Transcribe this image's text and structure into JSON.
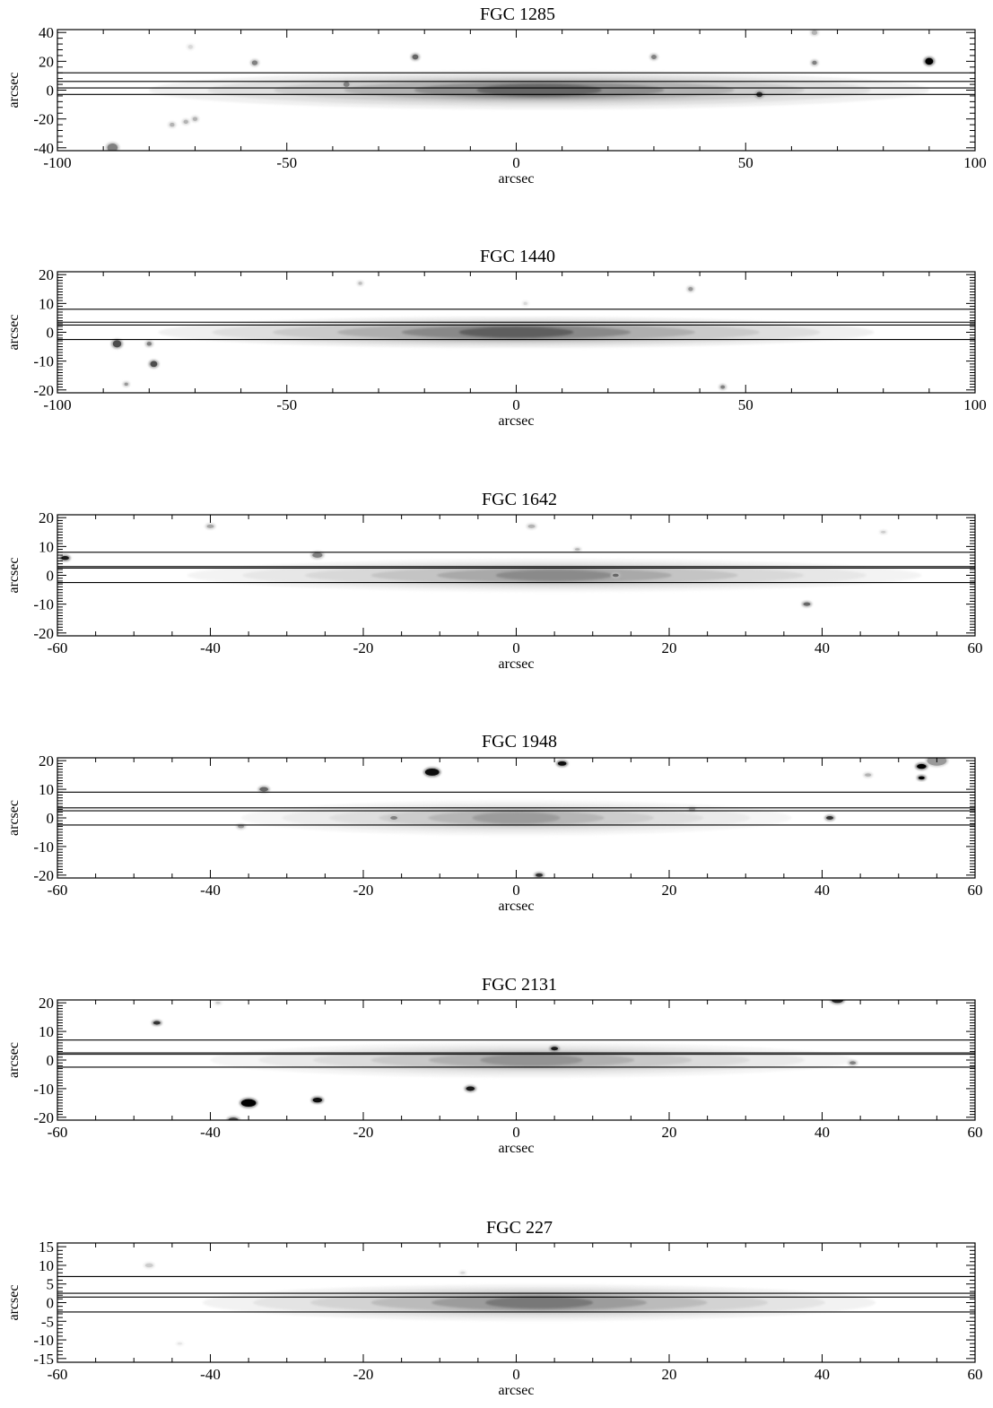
{
  "chart_data": [
    {
      "type": "heatmap",
      "title": "FGC 1285",
      "xlabel": "arcsec",
      "ylabel": "arcsec",
      "xlim": [
        -100,
        100
      ],
      "ylim": [
        -42,
        42
      ],
      "xticks": [
        -100,
        -50,
        0,
        50,
        100
      ],
      "yticks": [
        -40,
        -20,
        0,
        20,
        40
      ],
      "xminor": 10,
      "yminor": 4,
      "slit_lines": [
        12,
        6,
        1.5,
        -3
      ],
      "disk": {
        "center": 5,
        "half_length": 85,
        "scale_height": 5.5,
        "peak": 0.85
      },
      "sources": [
        {
          "x": 90,
          "y": 20,
          "size": 1.7,
          "peak": 1.0
        },
        {
          "x": 53,
          "y": -3,
          "size": 1.3,
          "peak": 0.8
        },
        {
          "x": -22,
          "y": 23,
          "size": 1.3,
          "peak": 0.6
        },
        {
          "x": -57,
          "y": 19,
          "size": 1.2,
          "peak": 0.5
        },
        {
          "x": 30,
          "y": 23,
          "size": 1.1,
          "peak": 0.5
        },
        {
          "x": 65,
          "y": 19,
          "size": 1.0,
          "peak": 0.5
        },
        {
          "x": -37,
          "y": 4,
          "size": 1.3,
          "peak": 0.5
        },
        {
          "x": -88,
          "y": -40,
          "size": 2.2,
          "peak": 0.5
        },
        {
          "x": -70,
          "y": -20,
          "size": 1.0,
          "peak": 0.3
        },
        {
          "x": -72,
          "y": -22,
          "size": 1.0,
          "peak": 0.3
        },
        {
          "x": -75,
          "y": -24,
          "size": 1.0,
          "peak": 0.3
        },
        {
          "x": 65,
          "y": 40,
          "size": 1.2,
          "peak": 0.3
        },
        {
          "x": -71,
          "y": 30,
          "size": 1.0,
          "peak": 0.15
        }
      ]
    },
    {
      "type": "heatmap",
      "title": "FGC 1440",
      "xlabel": "arcsec",
      "ylabel": "arcsec",
      "xlim": [
        -100,
        100
      ],
      "ylim": [
        -21,
        21
      ],
      "xticks": [
        -100,
        -50,
        0,
        50,
        100
      ],
      "yticks": [
        -20,
        -10,
        0,
        10,
        20
      ],
      "xminor": 10,
      "yminor": 1,
      "slit_lines": [
        8,
        3.5,
        2.5,
        -2.5
      ],
      "disk": {
        "center": 0,
        "half_length": 78,
        "scale_height": 2.2,
        "peak": 0.9
      },
      "sources": [
        {
          "x": -87,
          "y": -4,
          "size": 1.8,
          "peak": 0.7
        },
        {
          "x": -79,
          "y": -11,
          "size": 1.5,
          "peak": 0.7
        },
        {
          "x": -80,
          "y": -4,
          "size": 1.0,
          "peak": 0.5
        },
        {
          "x": 38,
          "y": 15,
          "size": 1.0,
          "peak": 0.4
        },
        {
          "x": 45,
          "y": -19,
          "size": 0.9,
          "peak": 0.5
        },
        {
          "x": -85,
          "y": -18,
          "size": 0.8,
          "peak": 0.4
        },
        {
          "x": -34,
          "y": 17,
          "size": 0.8,
          "peak": 0.25
        },
        {
          "x": 2,
          "y": 10,
          "size": 0.8,
          "peak": 0.15
        }
      ]
    },
    {
      "type": "heatmap",
      "title": "FGC 1642",
      "xlabel": "arcsec",
      "ylabel": "arcsec",
      "xlim": [
        -60,
        60
      ],
      "ylim": [
        -21,
        21
      ],
      "xticks": [
        -60,
        -40,
        -20,
        0,
        20,
        40,
        60
      ],
      "yticks": [
        -20,
        -10,
        0,
        10,
        20
      ],
      "xminor": 5,
      "yminor": 1,
      "slit_lines": [
        8,
        3,
        2.5,
        -2.5
      ],
      "disk": {
        "center": 5,
        "half_length": 48,
        "scale_height": 2.3,
        "peak": 0.65
      },
      "sources": [
        {
          "x": -59,
          "y": 6,
          "size": 1.0,
          "peak": 0.9
        },
        {
          "x": -26,
          "y": 7,
          "size": 1.3,
          "peak": 0.5
        },
        {
          "x": 38,
          "y": -10,
          "size": 0.9,
          "peak": 0.6
        },
        {
          "x": -40,
          "y": 17,
          "size": 0.9,
          "peak": 0.35
        },
        {
          "x": 2,
          "y": 17,
          "size": 0.9,
          "peak": 0.3
        },
        {
          "x": 13,
          "y": 0,
          "size": 0.8,
          "peak": 0.6
        },
        {
          "x": 48,
          "y": 15,
          "size": 0.6,
          "peak": 0.2
        },
        {
          "x": 8,
          "y": 9,
          "size": 0.6,
          "peak": 0.3
        }
      ]
    },
    {
      "type": "heatmap",
      "title": "FGC 1948",
      "xlabel": "arcsec",
      "ylabel": "arcsec",
      "xlim": [
        -60,
        60
      ],
      "ylim": [
        -21,
        21
      ],
      "xticks": [
        -60,
        -40,
        -20,
        0,
        20,
        40,
        60
      ],
      "yticks": [
        -20,
        -10,
        0,
        10,
        20
      ],
      "xminor": 5,
      "yminor": 1,
      "slit_lines": [
        9,
        3.5,
        2.5,
        -2.5
      ],
      "disk": {
        "center": 0,
        "half_length": 36,
        "scale_height": 2.5,
        "peak": 0.55
      },
      "sources": [
        {
          "x": -11,
          "y": 16,
          "size": 1.8,
          "peak": 0.95
        },
        {
          "x": 6,
          "y": 19,
          "size": 1.1,
          "peak": 0.95
        },
        {
          "x": -33,
          "y": 10,
          "size": 1.1,
          "peak": 0.6
        },
        {
          "x": 41,
          "y": 0,
          "size": 0.9,
          "peak": 0.8
        },
        {
          "x": 3,
          "y": -20,
          "size": 0.9,
          "peak": 0.8
        },
        {
          "x": 53,
          "y": 18,
          "size": 1.2,
          "peak": 1.0
        },
        {
          "x": 53,
          "y": 14,
          "size": 0.8,
          "peak": 1.0
        },
        {
          "x": 55,
          "y": 20,
          "size": 2.5,
          "peak": 0.4
        },
        {
          "x": -16,
          "y": 0,
          "size": 0.9,
          "peak": 0.5
        },
        {
          "x": 46,
          "y": 15,
          "size": 0.8,
          "peak": 0.3
        },
        {
          "x": -36,
          "y": -3,
          "size": 0.8,
          "peak": 0.4
        },
        {
          "x": 23,
          "y": 3,
          "size": 0.8,
          "peak": 0.35
        }
      ]
    },
    {
      "type": "heatmap",
      "title": "FGC 2131",
      "xlabel": "arcsec",
      "ylabel": "arcsec",
      "xlim": [
        -60,
        60
      ],
      "ylim": [
        -21,
        21
      ],
      "xticks": [
        -60,
        -40,
        -20,
        0,
        20,
        40,
        60
      ],
      "yticks": [
        -20,
        -10,
        0,
        10,
        20
      ],
      "xminor": 5,
      "yminor": 1,
      "slit_lines": [
        7,
        2.5,
        2,
        -2.5
      ],
      "disk": {
        "center": 2,
        "half_length": 42,
        "scale_height": 2.5,
        "peak": 0.6
      },
      "sources": [
        {
          "x": -35,
          "y": -15,
          "size": 1.9,
          "peak": 1.0
        },
        {
          "x": -26,
          "y": -14,
          "size": 1.2,
          "peak": 0.95
        },
        {
          "x": -6,
          "y": -10,
          "size": 1.1,
          "peak": 0.9
        },
        {
          "x": -47,
          "y": 13,
          "size": 0.9,
          "peak": 0.8
        },
        {
          "x": 5,
          "y": 4,
          "size": 0.9,
          "peak": 0.9
        },
        {
          "x": 42,
          "y": 21,
          "size": 1.5,
          "peak": 0.85
        },
        {
          "x": -37,
          "y": -21,
          "size": 1.3,
          "peak": 0.7
        },
        {
          "x": 44,
          "y": -1,
          "size": 0.8,
          "peak": 0.5
        },
        {
          "x": -39,
          "y": 20,
          "size": 0.6,
          "peak": 0.2
        }
      ]
    },
    {
      "type": "heatmap",
      "title": "FGC 227",
      "xlabel": "arcsec",
      "ylabel": "arcsec",
      "xlim": [
        -60,
        60
      ],
      "ylim": [
        -16,
        16
      ],
      "xticks": [
        -60,
        -40,
        -20,
        0,
        20,
        40,
        60
      ],
      "yticks": [
        -15,
        -10,
        -5,
        0,
        5,
        10,
        15
      ],
      "xminor": 5,
      "yminor": 1,
      "slit_lines": [
        7,
        2.5,
        1.5,
        -2.5
      ],
      "disk": {
        "center": 3,
        "half_length": 44,
        "scale_height": 2.0,
        "peak": 0.75
      },
      "sources": [
        {
          "x": -48,
          "y": 10,
          "size": 1.0,
          "peak": 0.2
        },
        {
          "x": -7,
          "y": 8,
          "size": 0.6,
          "peak": 0.15
        },
        {
          "x": -44,
          "y": -11,
          "size": 0.6,
          "peak": 0.1
        }
      ]
    }
  ]
}
